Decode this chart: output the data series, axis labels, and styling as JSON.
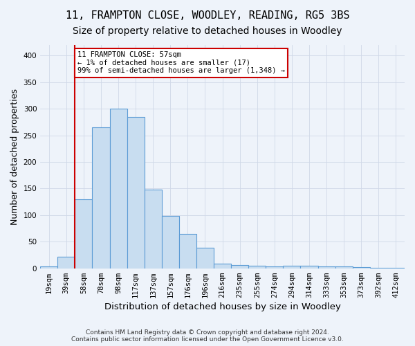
{
  "title": "11, FRAMPTON CLOSE, WOODLEY, READING, RG5 3BS",
  "subtitle": "Size of property relative to detached houses in Woodley",
  "xlabel": "Distribution of detached houses by size in Woodley",
  "ylabel": "Number of detached properties",
  "footer": "Contains HM Land Registry data © Crown copyright and database right 2024.\nContains public sector information licensed under the Open Government Licence v3.0.",
  "bar_labels": [
    "19sqm",
    "39sqm",
    "58sqm",
    "78sqm",
    "98sqm",
    "117sqm",
    "137sqm",
    "157sqm",
    "176sqm",
    "196sqm",
    "216sqm",
    "235sqm",
    "255sqm",
    "274sqm",
    "294sqm",
    "314sqm",
    "333sqm",
    "353sqm",
    "373sqm",
    "392sqm",
    "412sqm"
  ],
  "bar_values": [
    3,
    22,
    130,
    265,
    300,
    285,
    148,
    99,
    65,
    38,
    9,
    6,
    5,
    4,
    5,
    5,
    3,
    3,
    2,
    1,
    1
  ],
  "bar_color": "#c8ddf0",
  "bar_edge_color": "#5b9bd5",
  "property_line_bin": 1,
  "property_line_color": "#cc0000",
  "ylim": [
    0,
    420
  ],
  "yticks": [
    0,
    50,
    100,
    150,
    200,
    250,
    300,
    350,
    400
  ],
  "annotation_line1": "11 FRAMPTON CLOSE: 57sqm",
  "annotation_line2": "← 1% of detached houses are smaller (17)",
  "annotation_line3": "99% of semi-detached houses are larger (1,348) →",
  "annotation_box_edgecolor": "#cc0000",
  "background_color": "#eef3fa",
  "grid_color": "#d0d8e8",
  "title_fontsize": 11,
  "subtitle_fontsize": 10,
  "axis_label_fontsize": 9,
  "tick_fontsize": 7.5,
  "footer_fontsize": 6.5
}
